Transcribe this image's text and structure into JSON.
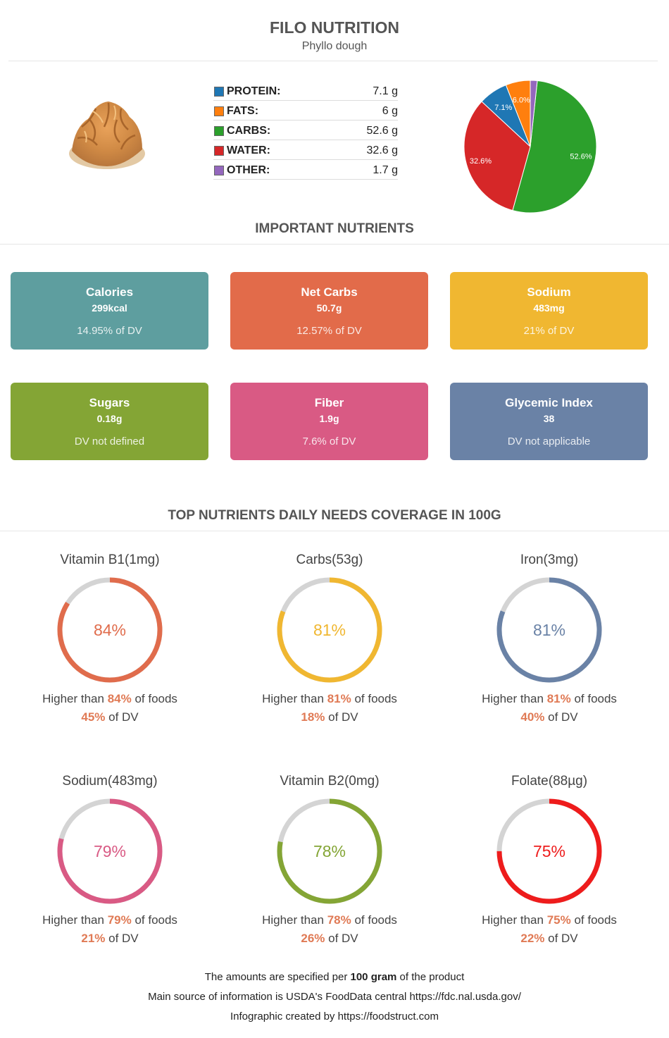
{
  "header": {
    "title": "FILO NUTRITION",
    "subtitle": "Phyllo dough"
  },
  "macros": [
    {
      "label": "PROTEIN:",
      "value": "7.1 g",
      "color": "#1f77b4"
    },
    {
      "label": "FATS:",
      "value": "6 g",
      "color": "#ff7f0e"
    },
    {
      "label": "CARBS:",
      "value": "52.6 g",
      "color": "#2ca02c"
    },
    {
      "label": "WATER:",
      "value": "32.6 g",
      "color": "#d62728"
    },
    {
      "label": "OTHER:",
      "value": "1.7 g",
      "color": "#9467bd"
    }
  ],
  "chart_data": {
    "type": "pie",
    "slices": [
      {
        "name": "Carbs",
        "value": 52.6,
        "label": "52.6%",
        "color": "#2ca02c"
      },
      {
        "name": "Water",
        "value": 32.6,
        "label": "32.6%",
        "color": "#d62728"
      },
      {
        "name": "Protein",
        "value": 7.1,
        "label": "7.1%",
        "color": "#1f77b4"
      },
      {
        "name": "Fats",
        "value": 6.0,
        "label": "6.0%",
        "color": "#ff7f0e"
      },
      {
        "name": "Other",
        "value": 1.7,
        "label": "",
        "color": "#9467bd"
      }
    ]
  },
  "important": {
    "title": "IMPORTANT NUTRIENTS",
    "cards": [
      {
        "name": "Calories",
        "value": "299kcal",
        "dv": "14.95% of DV",
        "color": "#5e9e9f"
      },
      {
        "name": "Net Carbs",
        "value": "50.7g",
        "dv": "12.57% of DV",
        "color": "#e26b4a"
      },
      {
        "name": "Sodium",
        "value": "483mg",
        "dv": "21% of DV",
        "color": "#f0b731"
      },
      {
        "name": "Sugars",
        "value": "0.18g",
        "dv": "DV not defined",
        "color": "#84a535"
      },
      {
        "name": "Fiber",
        "value": "1.9g",
        "dv": "7.6% of DV",
        "color": "#d95a84"
      },
      {
        "name": "Glycemic Index",
        "value": "38",
        "dv": "DV not applicable",
        "color": "#6a82a6"
      }
    ]
  },
  "coverage": {
    "title": "TOP NUTRIENTS DAILY NEEDS COVERAGE IN 100G",
    "higher_prefix": "Higher than ",
    "higher_suffix": " of foods",
    "dv_suffix": " of DV",
    "items": [
      {
        "name": "Vitamin B1(1mg)",
        "percent": 84,
        "percent_label": "84%",
        "higher": "84%",
        "dv": "45%",
        "color": "#e06c4c"
      },
      {
        "name": "Carbs(53g)",
        "percent": 81,
        "percent_label": "81%",
        "higher": "81%",
        "dv": "18%",
        "color": "#f0b731"
      },
      {
        "name": "Iron(3mg)",
        "percent": 81,
        "percent_label": "81%",
        "higher": "81%",
        "dv": "40%",
        "color": "#6a82a6"
      },
      {
        "name": "Sodium(483mg)",
        "percent": 79,
        "percent_label": "79%",
        "higher": "79%",
        "dv": "21%",
        "color": "#d95a84"
      },
      {
        "name": "Vitamin B2(0mg)",
        "percent": 78,
        "percent_label": "78%",
        "higher": "78%",
        "dv": "26%",
        "color": "#84a535"
      },
      {
        "name": "Folate(88µg)",
        "percent": 75,
        "percent_label": "75%",
        "higher": "75%",
        "dv": "22%",
        "color": "#ee1c1c"
      }
    ]
  },
  "footer": {
    "line1_prefix": "The amounts are specified per ",
    "line1_bold": "100 gram",
    "line1_suffix": " of the product",
    "line2": "Main source of information is USDA's FoodData central https://fdc.nal.usda.gov/",
    "line3": "Infographic created by https://foodstruct.com"
  }
}
